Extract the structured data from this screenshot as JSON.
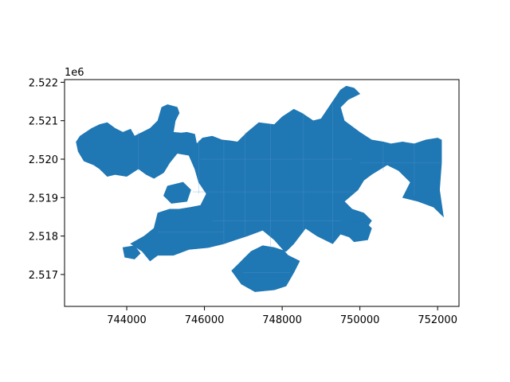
{
  "chart_data": {
    "type": "map",
    "title": "",
    "xlabel": "",
    "ylabel": "",
    "y_offset_label": "1e6",
    "xlim": [
      742400,
      752550
    ],
    "ylim": [
      2516170,
      2522070
    ],
    "x_ticks": [
      {
        "value": 744000,
        "label": "744000"
      },
      {
        "value": 746000,
        "label": "746000"
      },
      {
        "value": 748000,
        "label": "748000"
      },
      {
        "value": 750000,
        "label": "750000"
      },
      {
        "value": 752000,
        "label": "752000"
      }
    ],
    "y_ticks": [
      {
        "value": 2517000,
        "label": "2.517"
      },
      {
        "value": 2518000,
        "label": "2.518"
      },
      {
        "value": 2519000,
        "label": "2.519"
      },
      {
        "value": 2520000,
        "label": "2.520"
      },
      {
        "value": 2521000,
        "label": "2.521"
      },
      {
        "value": 2522000,
        "label": "2.522"
      }
    ],
    "grid": false,
    "fill_color": "#1f77b4",
    "edge_color": "#5b9bd0",
    "regions": [
      {
        "polygon": [
          [
            742800,
            2520600
          ],
          [
            743100,
            2520800
          ],
          [
            743300,
            2520900
          ],
          [
            743500,
            2520950
          ],
          [
            743700,
            2520800
          ],
          [
            743900,
            2520700
          ],
          [
            744100,
            2520780
          ],
          [
            744200,
            2520600
          ],
          [
            744600,
            2520800
          ],
          [
            744800,
            2521000
          ],
          [
            744900,
            2521350
          ],
          [
            745050,
            2521420
          ],
          [
            745300,
            2521350
          ],
          [
            745350,
            2521200
          ],
          [
            745250,
            2521000
          ],
          [
            745200,
            2520700
          ],
          [
            745400,
            2520680
          ],
          [
            745550,
            2520700
          ],
          [
            745750,
            2520650
          ],
          [
            745800,
            2520400
          ],
          [
            745950,
            2520550
          ],
          [
            746200,
            2520600
          ],
          [
            746450,
            2520500
          ],
          [
            746650,
            2520480
          ],
          [
            746850,
            2520450
          ],
          [
            747100,
            2520700
          ],
          [
            747400,
            2520950
          ],
          [
            747800,
            2520900
          ],
          [
            748000,
            2521100
          ],
          [
            748300,
            2521300
          ],
          [
            748500,
            2521200
          ],
          [
            748800,
            2521000
          ],
          [
            749000,
            2521050
          ],
          [
            749300,
            2521500
          ],
          [
            749500,
            2521800
          ],
          [
            749650,
            2521900
          ],
          [
            749850,
            2521850
          ],
          [
            750000,
            2521700
          ],
          [
            749700,
            2521550
          ],
          [
            749500,
            2521350
          ],
          [
            749600,
            2521000
          ],
          [
            750000,
            2520700
          ],
          [
            750300,
            2520500
          ],
          [
            750600,
            2520450
          ],
          [
            750800,
            2520400
          ],
          [
            751100,
            2520450
          ],
          [
            751400,
            2520400
          ],
          [
            751700,
            2520500
          ],
          [
            752000,
            2520550
          ],
          [
            752100,
            2520500
          ],
          [
            752100,
            2519900
          ],
          [
            752050,
            2519200
          ],
          [
            752150,
            2518500
          ],
          [
            751900,
            2518750
          ],
          [
            751500,
            2518900
          ],
          [
            751100,
            2519000
          ],
          [
            751300,
            2519400
          ],
          [
            751000,
            2519700
          ],
          [
            750700,
            2519850
          ],
          [
            750300,
            2519600
          ],
          [
            750100,
            2519450
          ],
          [
            749950,
            2519200
          ],
          [
            749600,
            2518900
          ],
          [
            749800,
            2518700
          ],
          [
            750100,
            2518600
          ],
          [
            750300,
            2518400
          ],
          [
            750100,
            2518100
          ],
          [
            749800,
            2517950
          ],
          [
            749500,
            2518050
          ],
          [
            749300,
            2517800
          ],
          [
            748900,
            2518000
          ],
          [
            748600,
            2518200
          ],
          [
            748300,
            2517800
          ],
          [
            748100,
            2517600
          ],
          [
            747800,
            2517700
          ],
          [
            747500,
            2517750
          ],
          [
            747200,
            2517600
          ],
          [
            747000,
            2517400
          ],
          [
            746900,
            2517300
          ],
          [
            746700,
            2517100
          ],
          [
            746950,
            2516750
          ],
          [
            747300,
            2516550
          ],
          [
            747800,
            2516600
          ],
          [
            748100,
            2516700
          ],
          [
            748300,
            2517050
          ],
          [
            748450,
            2517350
          ],
          [
            748150,
            2517500
          ],
          [
            747800,
            2517900
          ],
          [
            747500,
            2518150
          ],
          [
            747100,
            2518000
          ],
          [
            746800,
            2517900
          ],
          [
            746500,
            2517800
          ],
          [
            746100,
            2517700
          ],
          [
            745600,
            2517650
          ],
          [
            745200,
            2517500
          ],
          [
            744800,
            2517500
          ],
          [
            744600,
            2517350
          ],
          [
            744400,
            2517600
          ],
          [
            744100,
            2517800
          ],
          [
            744450,
            2518000
          ],
          [
            744700,
            2518200
          ],
          [
            744800,
            2518600
          ],
          [
            745100,
            2518700
          ],
          [
            745350,
            2518700
          ],
          [
            745650,
            2518750
          ],
          [
            745900,
            2518800
          ],
          [
            746050,
            2519100
          ],
          [
            745850,
            2519400
          ],
          [
            745750,
            2519750
          ],
          [
            745600,
            2520100
          ],
          [
            745300,
            2520150
          ],
          [
            745100,
            2519900
          ],
          [
            744950,
            2519650
          ],
          [
            744700,
            2519500
          ],
          [
            744500,
            2519600
          ],
          [
            744300,
            2519750
          ],
          [
            744000,
            2519550
          ],
          [
            743700,
            2519600
          ],
          [
            743500,
            2519550
          ],
          [
            743300,
            2519750
          ],
          [
            743150,
            2519850
          ],
          [
            742900,
            2519950
          ],
          [
            742750,
            2520200
          ],
          [
            742700,
            2520450
          ]
        ]
      },
      {
        "polygon": [
          [
            745050,
            2519300
          ],
          [
            745450,
            2519400
          ],
          [
            745650,
            2519200
          ],
          [
            745550,
            2518900
          ],
          [
            745150,
            2518850
          ],
          [
            744950,
            2519050
          ]
        ]
      },
      {
        "polygon": [
          [
            749700,
            2518350
          ],
          [
            750100,
            2518400
          ],
          [
            750300,
            2518200
          ],
          [
            750200,
            2517900
          ],
          [
            749850,
            2517850
          ],
          [
            749650,
            2518050
          ]
        ]
      },
      {
        "polygon": [
          [
            743900,
            2517700
          ],
          [
            744200,
            2517750
          ],
          [
            744350,
            2517550
          ],
          [
            744200,
            2517400
          ],
          [
            743950,
            2517450
          ]
        ]
      }
    ],
    "boundaries": [
      [
        [
          745850,
          2520500
        ],
        [
          745850,
          2519100
        ]
      ],
      [
        [
          746500,
          2520450
        ],
        [
          746500,
          2517800
        ]
      ],
      [
        [
          747050,
          2520700
        ],
        [
          747050,
          2518000
        ]
      ],
      [
        [
          747700,
          2520900
        ],
        [
          747700,
          2517650
        ]
      ],
      [
        [
          748550,
          2521200
        ],
        [
          748550,
          2518100
        ]
      ],
      [
        [
          749300,
          2521450
        ],
        [
          749300,
          2517900
        ]
      ],
      [
        [
          750600,
          2520400
        ],
        [
          750600,
          2519700
        ]
      ],
      [
        [
          751400,
          2520400
        ],
        [
          751400,
          2519050
        ]
      ],
      [
        [
          744300,
          2520700
        ],
        [
          744300,
          2519700
        ]
      ],
      [
        [
          745900,
          2520000
        ],
        [
          749800,
          2520000
        ]
      ],
      [
        [
          745700,
          2519150
        ],
        [
          749900,
          2519150
        ]
      ],
      [
        [
          746200,
          2518400
        ],
        [
          749500,
          2518400
        ]
      ],
      [
        [
          750000,
          2519900
        ],
        [
          752100,
          2519900
        ]
      ],
      [
        [
          744800,
          2518100
        ],
        [
          746500,
          2518100
        ]
      ],
      [
        [
          747000,
          2517050
        ],
        [
          748200,
          2517050
        ]
      ]
    ]
  }
}
